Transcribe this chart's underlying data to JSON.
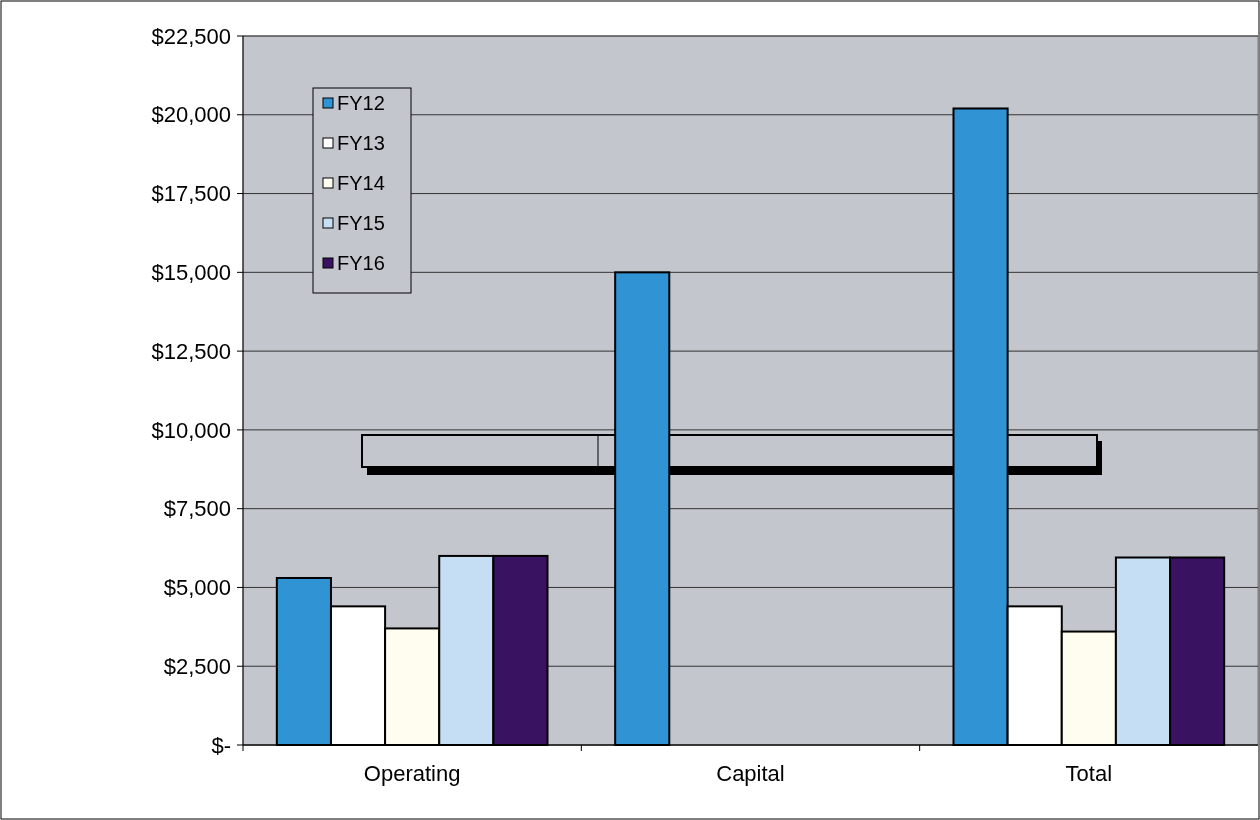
{
  "chart_data": {
    "type": "bar",
    "categories": [
      "Operating",
      "Capital",
      "Total"
    ],
    "series": [
      {
        "name": "FY12",
        "color": "#2f93d4",
        "values": [
          5300,
          15000,
          20200
        ]
      },
      {
        "name": "FY13",
        "color": "#ffffff",
        "values": [
          4400,
          null,
          4400
        ]
      },
      {
        "name": "FY14",
        "color": "#fffdf0",
        "values": [
          3700,
          null,
          3600
        ]
      },
      {
        "name": "FY15",
        "color": "#c6def3",
        "values": [
          6000,
          null,
          5950
        ]
      },
      {
        "name": "FY16",
        "color": "#3a1262",
        "values": [
          6000,
          null,
          5950
        ]
      }
    ],
    "ylim": [
      0,
      22500
    ],
    "yticks": [
      {
        "value": 0,
        "label": "$-"
      },
      {
        "value": 2500,
        "label": "$2,500"
      },
      {
        "value": 5000,
        "label": "$5,000"
      },
      {
        "value": 7500,
        "label": "$7,500"
      },
      {
        "value": 10000,
        "label": "$10,000"
      },
      {
        "value": 12500,
        "label": "$12,500"
      },
      {
        "value": 15000,
        "label": "$15,000"
      },
      {
        "value": 17500,
        "label": "$17,500"
      },
      {
        "value": 20000,
        "label": "$20,000"
      },
      {
        "value": 22500,
        "label": "$22,500"
      }
    ],
    "grid": "y",
    "legend": "top left"
  }
}
